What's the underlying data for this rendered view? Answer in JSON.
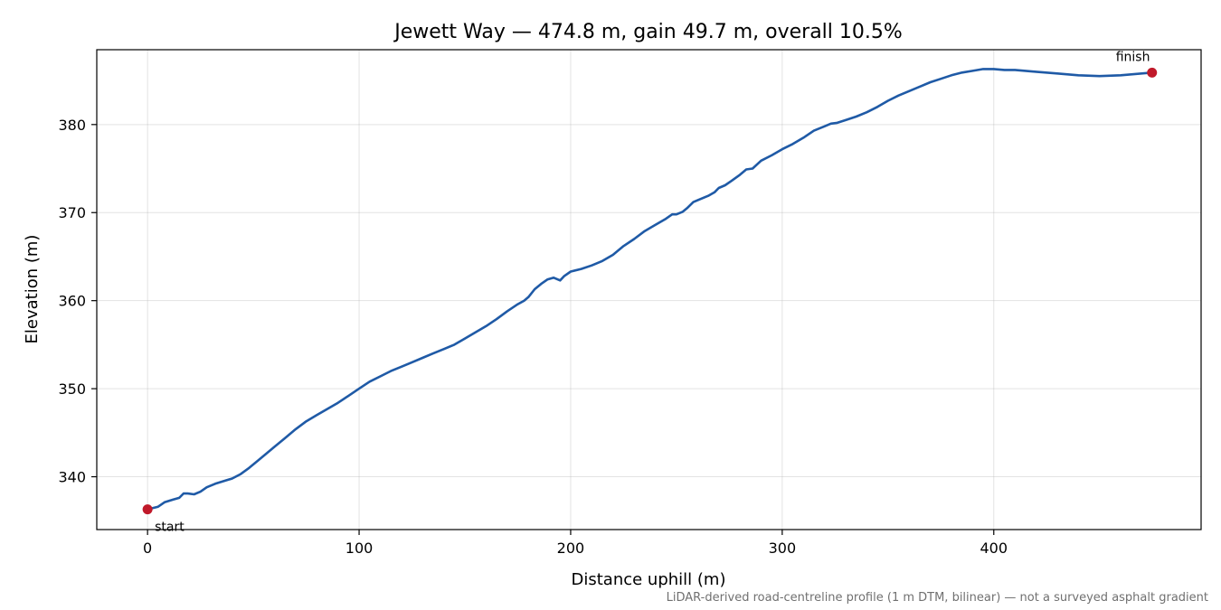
{
  "chart_data": {
    "type": "line",
    "title": "Jewett Way — 474.8 m, gain 49.7 m, overall 10.5%",
    "xlabel": "Distance uphill (m)",
    "ylabel": "Elevation (m)",
    "xlim": [
      -24,
      498
    ],
    "ylim": [
      334,
      388.5
    ],
    "x_ticks": [
      0,
      100,
      200,
      300,
      400
    ],
    "y_ticks": [
      340,
      350,
      360,
      370,
      380
    ],
    "grid": true,
    "line_color": "#1f5aa6",
    "marker_color": "#c0192a",
    "series": [
      {
        "x": [
          0,
          5,
          8,
          12,
          15,
          17,
          19,
          22,
          25,
          28,
          32,
          36,
          40,
          44,
          48,
          52,
          56,
          60,
          65,
          70,
          75,
          80,
          85,
          90,
          95,
          100,
          105,
          110,
          115,
          120,
          125,
          130,
          135,
          140,
          145,
          150,
          155,
          160,
          165,
          170,
          175,
          178,
          180,
          183,
          186,
          189,
          192,
          195,
          197,
          200,
          205,
          210,
          215,
          220,
          225,
          230,
          235,
          240,
          245,
          248,
          250,
          253,
          255,
          258,
          260,
          265,
          268,
          270,
          273,
          276,
          280,
          283,
          286,
          290,
          295,
          300,
          305,
          310,
          315,
          320,
          323,
          326,
          330,
          335,
          340,
          345,
          350,
          355,
          360,
          365,
          370,
          375,
          380,
          385,
          390,
          395,
          400,
          405,
          410,
          415,
          420,
          430,
          440,
          450,
          460,
          474.8
        ],
        "y": [
          336.3,
          336.6,
          337.1,
          337.4,
          337.6,
          338.1,
          338.1,
          338.0,
          338.3,
          338.8,
          339.2,
          339.5,
          339.8,
          340.3,
          341.0,
          341.8,
          342.6,
          343.4,
          344.4,
          345.4,
          346.3,
          347.0,
          347.7,
          348.4,
          349.2,
          350.0,
          350.8,
          351.4,
          352.0,
          352.5,
          353.0,
          353.5,
          354.0,
          354.5,
          355.0,
          355.7,
          356.4,
          357.1,
          357.9,
          358.8,
          359.6,
          360.0,
          360.4,
          361.3,
          361.9,
          362.4,
          362.6,
          362.3,
          362.8,
          363.3,
          363.6,
          364.0,
          364.5,
          365.2,
          366.2,
          367.0,
          367.9,
          368.6,
          369.3,
          369.8,
          369.8,
          370.1,
          370.5,
          371.2,
          371.4,
          371.9,
          372.3,
          372.8,
          373.1,
          373.6,
          374.3,
          374.9,
          375.0,
          375.9,
          376.5,
          377.2,
          377.8,
          378.5,
          379.3,
          379.8,
          380.1,
          380.2,
          380.5,
          380.9,
          381.4,
          382.0,
          382.7,
          383.3,
          383.8,
          384.3,
          384.8,
          385.2,
          385.6,
          385.9,
          386.1,
          386.3,
          386.3,
          386.2,
          386.2,
          386.1,
          386.0,
          385.8,
          385.6,
          385.5,
          385.6,
          385.9
        ]
      }
    ],
    "annotations": [
      {
        "text": "start",
        "x": 0,
        "y": 336.3
      },
      {
        "text": "finish",
        "x": 474.8,
        "y": 385.9
      }
    ],
    "footnote": "LiDAR-derived road-centreline profile (1 m DTM, bilinear) — not a surveyed asphalt gradient"
  }
}
